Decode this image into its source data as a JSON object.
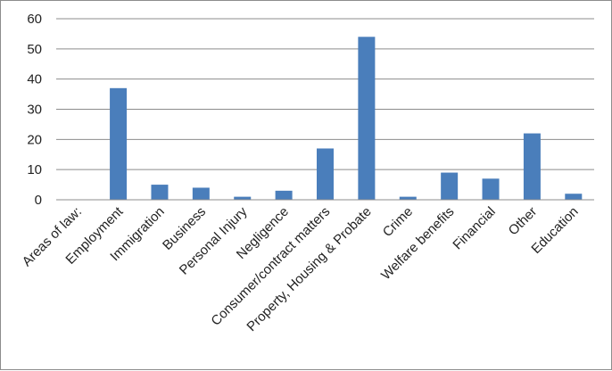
{
  "chart_data": {
    "type": "bar",
    "categories": [
      "Areas of law:",
      "Employment",
      "Immigration",
      "Business",
      "Personal Injury",
      "Negligence",
      "Consumer/contract matters",
      "Property, Housing & Probate",
      "Crime",
      "Welfare benefits",
      "Financial",
      "Other",
      "Education"
    ],
    "values": [
      0,
      37,
      5,
      4,
      1,
      3,
      17,
      54,
      1,
      9,
      7,
      22,
      2
    ],
    "ylim": [
      0,
      60
    ],
    "yticks": [
      0,
      10,
      20,
      30,
      40,
      50,
      60
    ],
    "grid": true,
    "legend": "none",
    "bar_color": "#4a7ebb",
    "gridline_color": "#8c8c8c"
  }
}
